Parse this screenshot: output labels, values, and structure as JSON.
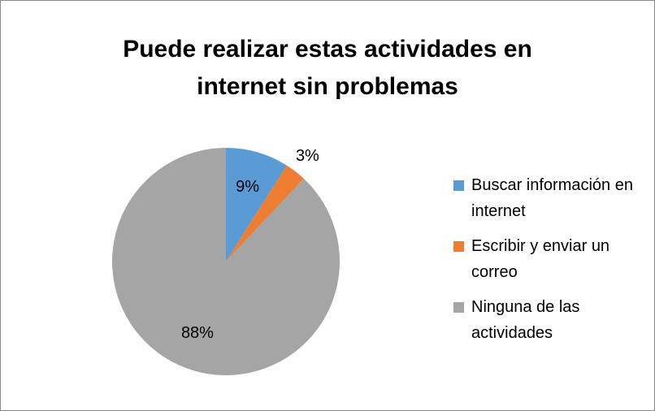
{
  "chart_data": {
    "type": "pie",
    "title": "Puede realizar estas actividades en internet sin problemas",
    "categories": [
      "Buscar información en internet",
      "Escribir y enviar un correo",
      "Ninguna de las actividades"
    ],
    "values": [
      9,
      3,
      88
    ],
    "value_labels": [
      "9%",
      "3%",
      "88%"
    ],
    "colors": [
      "#5b9bd5",
      "#ed7d31",
      "#a5a5a5"
    ],
    "legend": "right"
  }
}
